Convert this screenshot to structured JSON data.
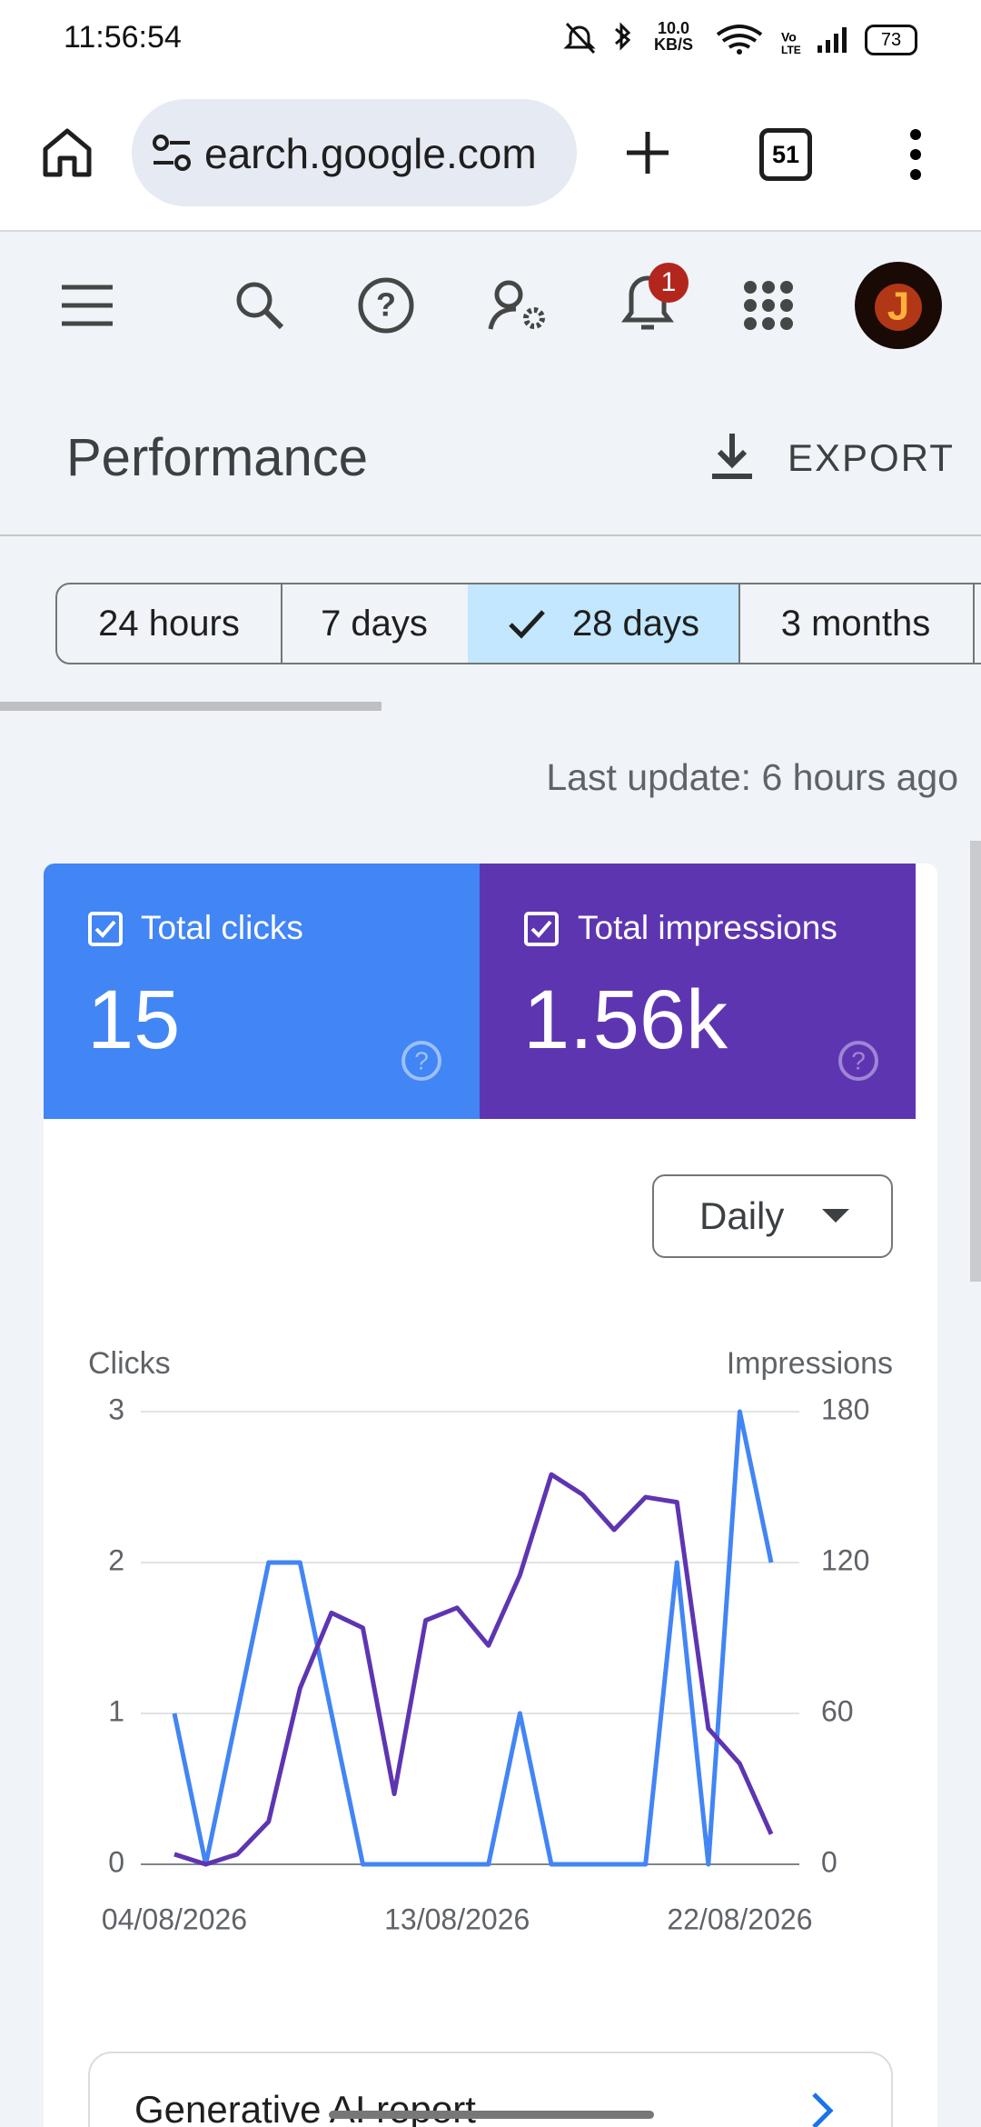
{
  "status_bar": {
    "time": "11:56:54",
    "net_speed": "10.0",
    "net_unit": "KB/S",
    "battery": "73"
  },
  "browser": {
    "url": "earch.google.com",
    "tab_count": "51"
  },
  "toolbar": {
    "notification_count": "1"
  },
  "header": {
    "title": "Performance",
    "export": "EXPORT"
  },
  "filters": [
    "24 hours",
    "7 days",
    "28 days",
    "3 months"
  ],
  "last_update": "Last update: 6 hours ago",
  "cards": [
    {
      "label": "Total clicks",
      "value": "15"
    },
    {
      "label": "Total impressions",
      "value": "1.56k"
    }
  ],
  "dropdown": "Daily",
  "chart_data": {
    "type": "line",
    "y_label": "Clicks",
    "y2_label": "Impressions",
    "categories": [
      "04/08/2026",
      null,
      null,
      null,
      null,
      null,
      null,
      null,
      null,
      "13/08/2026",
      null,
      null,
      null,
      null,
      null,
      null,
      null,
      null,
      "22/08/2026",
      null
    ],
    "series": [
      {
        "name": "Clicks",
        "color": "#4285f4",
        "values": [
          1,
          0,
          1,
          2,
          2,
          1,
          0,
          0,
          0,
          0,
          0,
          1,
          0,
          0,
          0,
          0,
          2,
          0,
          3,
          2
        ]
      },
      {
        "name": "Impressions",
        "color": "#5e35b1",
        "axis": "y2",
        "values": [
          4,
          0,
          4,
          17,
          70,
          100,
          94,
          28,
          97,
          102,
          87,
          115,
          155,
          147,
          133,
          146,
          144,
          54,
          40,
          12
        ]
      }
    ],
    "ylim": [
      0,
      3
    ],
    "yticks": [
      0,
      1,
      2,
      3
    ],
    "y2lim": [
      0,
      180
    ],
    "y2ticks": [
      0,
      60,
      120,
      180
    ],
    "grid": true
  },
  "report_card": {
    "title": "Generative AI report"
  }
}
